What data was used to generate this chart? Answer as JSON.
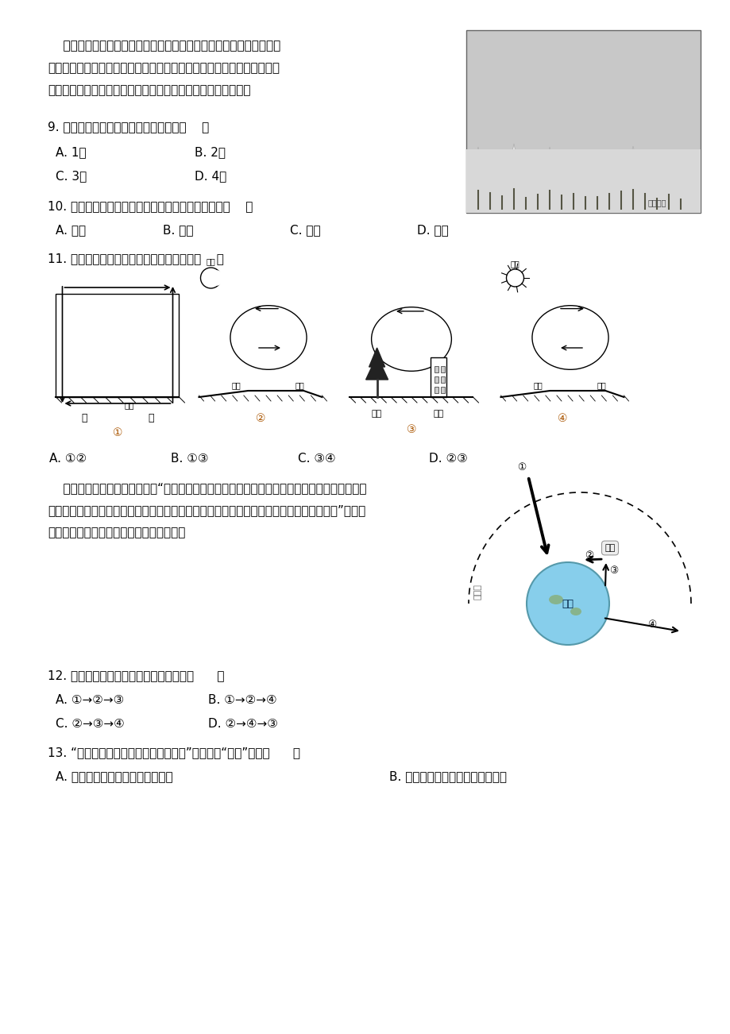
{
  "bg_color": "#ffffff",
  "text_color": "#000000",
  "paragraph1": "    雾淧，俗称树挂，是低温时空气中水汽直接凝华，或过冷雾滴直接冻",
  "paragraph2": "结在物体上的乳白色冰晶沉积物，是非常难得的自然奇观。雾淧景观以吉",
  "paragraph3": "林雾淧最为有名。下图为吉林雾淧景观图。据此回答下列各题。",
  "q9": "9. 雾淧的形成，体现的地球圈层数量有（    ）",
  "q9_a": "A. 1个",
  "q9_b": "B. 2个",
  "q9_c": "C. 3个",
  "q9_d": "D. 4个",
  "q10": "10. 构成雾淧景观的核心要素所属地球圈层的主体是（    ）",
  "q10_a": "A. 海洋",
  "q10_b": "B. 空气",
  "q10_c": "C. 岩石",
  "q10_d": "D. 植物",
  "q11": "11. 下列近地面大气热力环流绘制正确的是（    ）",
  "para_qimin1": "    《齐民要术》中有文字记载：“凡五果，花盛时遇霜，则无子。常预于园中，往往踪恶草生粪。",
  "para_qimin2": "天雨新晴，北风寒切，是夜必霜，此时放火做焉（无焊的微火），少得烟气，则免于霜岁。”下图是",
  "para_qimin3": "大气受热过程示意图。据此完成下面小题。",
  "q12": "12. 近地面大气温度升高的热量传递过程（      ）",
  "q12_a": "A. ①→②→③",
  "q12_b": "B. ①→②→④",
  "q12_c": "C. ②→③→④",
  "q12_d": "D. ②→④→③",
  "q13": "13. “放火做焉，少得烟气，则免于霜岁”，是因为“烟气”可以（      ）",
  "q13_a": "A. 吸收大气逃说射，增加地面温度",
  "q13_b": "B. 反射大气逃说射，增大大气温度"
}
